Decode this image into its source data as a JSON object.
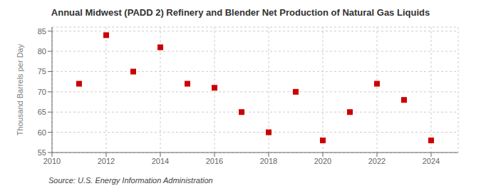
{
  "chart_data": {
    "type": "scatter",
    "title": "Annual Midwest (PADD 2) Refinery and Blender Net Production of Natural Gas Liquids",
    "ylabel": "Thousand Barrels per Day",
    "annotation": "Source: U.S. Energy Information Administration",
    "x": [
      2011,
      2012,
      2013,
      2014,
      2015,
      2016,
      2017,
      2018,
      2019,
      2020,
      2021,
      2022,
      2023,
      2024
    ],
    "values": [
      72,
      84,
      75,
      81,
      72,
      71,
      65,
      60,
      70,
      58,
      65,
      72,
      68,
      58
    ],
    "color": "#cc0000",
    "marker": "square",
    "xlim": [
      2010,
      2025
    ],
    "ylim": [
      55,
      86
    ],
    "xticks": [
      2010,
      2012,
      2014,
      2016,
      2018,
      2020,
      2022,
      2024
    ],
    "yticks": [
      55,
      60,
      65,
      70,
      75,
      80,
      85
    ],
    "grid": true
  }
}
